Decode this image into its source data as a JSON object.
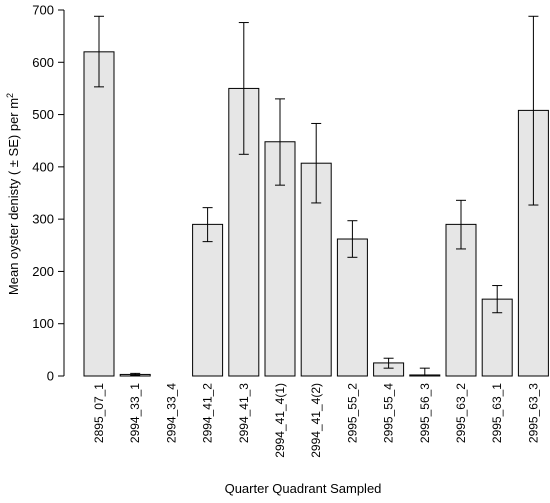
{
  "chart_data": {
    "type": "bar",
    "title": "",
    "xlabel": "Quarter Quadrant Sampled",
    "ylabel": "Mean oyster denisty ( ± SE) per m",
    "ylabel_superscript": "2",
    "ylim": [
      0,
      700
    ],
    "yticks": [
      0,
      100,
      200,
      300,
      400,
      500,
      600,
      700
    ],
    "grid": false,
    "legend": "none",
    "bar_color": "#e6e6e6",
    "categories": [
      "2895_07_1",
      "2994_33_1",
      "2994_33_4",
      "2994_41_2",
      "2994_41_3",
      "2994_41_4(1)",
      "2994_41_4(2)",
      "2995_55_2",
      "2995_55_4",
      "2995_56_3",
      "2995_63_2",
      "2995_63_1",
      "2995_63_3"
    ],
    "values": [
      620,
      3,
      0,
      290,
      550,
      448,
      407,
      262,
      25,
      2,
      290,
      147,
      508
    ],
    "error_low": [
      553,
      1,
      0,
      257,
      424,
      365,
      331,
      227,
      15,
      0,
      243,
      121,
      327
    ],
    "error_high": [
      688,
      5,
      0,
      322,
      676,
      530,
      483,
      297,
      34,
      15,
      336,
      173,
      688
    ]
  }
}
